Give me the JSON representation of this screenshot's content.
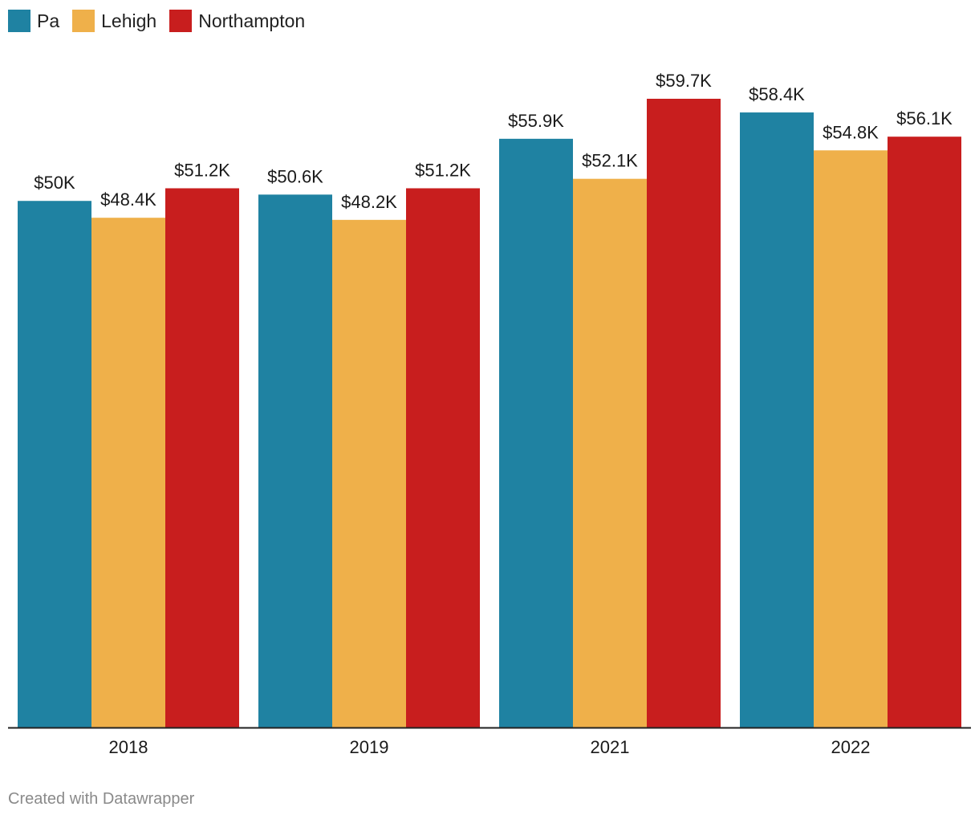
{
  "legend": [
    {
      "name": "Pa",
      "color": "#1f82a2"
    },
    {
      "name": "Lehigh",
      "color": "#efb04a"
    },
    {
      "name": "Northampton",
      "color": "#c81e1e"
    }
  ],
  "credit": "Created with Datawrapper",
  "chart_data": {
    "type": "bar",
    "categories": [
      "2018",
      "2019",
      "2021",
      "2022"
    ],
    "series": [
      {
        "name": "Pa",
        "color": "#1f82a2",
        "values": [
          50000,
          50600,
          55900,
          58400
        ],
        "labels": [
          "$50K",
          "$50.6K",
          "$55.9K",
          "$58.4K"
        ]
      },
      {
        "name": "Lehigh",
        "color": "#efb04a",
        "values": [
          48400,
          48200,
          52100,
          54800
        ],
        "labels": [
          "$48.4K",
          "$48.2K",
          "$52.1K",
          "$54.8K"
        ]
      },
      {
        "name": "Northampton",
        "color": "#c81e1e",
        "values": [
          51200,
          51200,
          59700,
          56100
        ],
        "labels": [
          "$51.2K",
          "$51.2K",
          "$59.7K",
          "$56.1K"
        ]
      }
    ],
    "ylim": [
      0,
      59700
    ],
    "grid": false,
    "legend_position": "top-left"
  }
}
